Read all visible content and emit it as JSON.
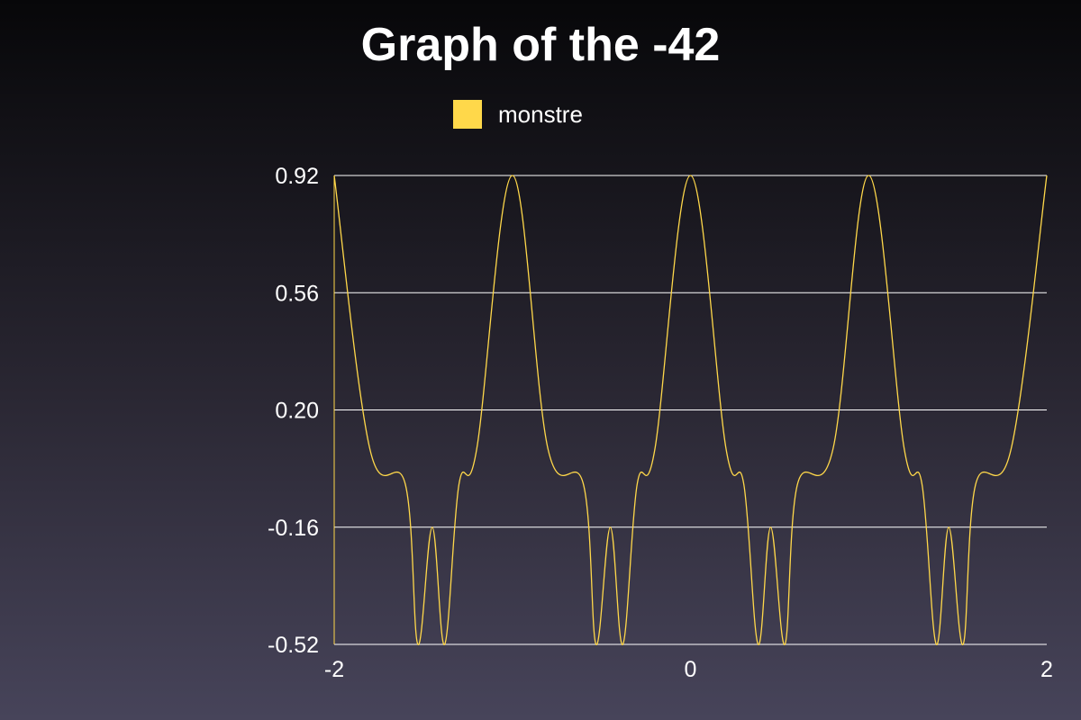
{
  "chart_data": {
    "type": "line",
    "title": "Graph of the -42",
    "xlabel": "",
    "ylabel": "",
    "xlim": [
      -2,
      2
    ],
    "ylim": [
      -0.52,
      0.92
    ],
    "x_ticks": [
      "-2",
      "0",
      "2"
    ],
    "y_ticks": [
      "0.92",
      "0.56",
      "0.20",
      "-0.16",
      "-0.52"
    ],
    "grid": "horizontal",
    "legend_position": "top-center",
    "series": [
      {
        "name": "monstre",
        "color": "#ffd84a",
        "x": [
          -2.0,
          -1.8,
          -1.6,
          -1.53,
          -1.45,
          -1.38,
          -1.3,
          -1.2,
          -1.0,
          -0.8,
          -0.6,
          -0.53,
          -0.45,
          -0.38,
          -0.3,
          -0.2,
          0.0,
          0.2,
          0.3,
          0.38,
          0.45,
          0.53,
          0.6,
          0.8,
          1.0,
          1.2,
          1.3,
          1.38,
          1.45,
          1.53,
          1.6,
          1.8,
          2.0
        ],
        "y": [
          0.92,
          0.08,
          -0.03,
          -0.52,
          -0.16,
          -0.52,
          -0.03,
          0.08,
          0.92,
          0.08,
          -0.03,
          -0.52,
          -0.16,
          -0.52,
          -0.03,
          0.08,
          0.92,
          0.08,
          -0.03,
          -0.52,
          -0.16,
          -0.52,
          -0.03,
          0.08,
          0.92,
          0.08,
          -0.03,
          -0.52,
          -0.16,
          -0.52,
          -0.03,
          0.08,
          0.92
        ]
      }
    ]
  }
}
